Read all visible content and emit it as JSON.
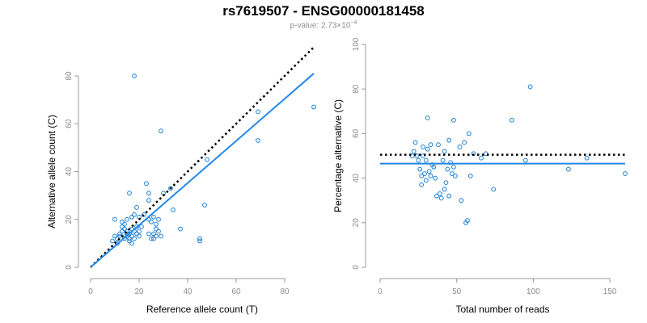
{
  "title": "rs7619507 - ENSG00000181458",
  "subtitle": {
    "prefix": "p-value: 2.73×10",
    "exponent": "−4"
  },
  "colors": {
    "point": "#1a7fd4",
    "fit": "#2388e8",
    "reference": "#000000",
    "axis": "#999999",
    "tick_text": "#8c8c8c"
  },
  "chart_data": [
    {
      "type": "scatter",
      "xlabel": "Reference allele count (T)",
      "ylabel": "Alternative allele count (C)",
      "xlim": [
        0,
        92
      ],
      "ylim": [
        0,
        80
      ],
      "xticks": [
        0,
        20,
        40,
        60,
        80
      ],
      "yticks": [
        0,
        20,
        40,
        60,
        80
      ],
      "points": [
        [
          9,
          11
        ],
        [
          10,
          13
        ],
        [
          10,
          20
        ],
        [
          11,
          10
        ],
        [
          11,
          12
        ],
        [
          12,
          14
        ],
        [
          12,
          13
        ],
        [
          13,
          15
        ],
        [
          13,
          17
        ],
        [
          13,
          19
        ],
        [
          14,
          12
        ],
        [
          14,
          16
        ],
        [
          14,
          18
        ],
        [
          15,
          13
        ],
        [
          15,
          14
        ],
        [
          15,
          15
        ],
        [
          15,
          20
        ],
        [
          16,
          12
        ],
        [
          16,
          14
        ],
        [
          16,
          31
        ],
        [
          16,
          11
        ],
        [
          17,
          13
        ],
        [
          17,
          16
        ],
        [
          17,
          21
        ],
        [
          17,
          10
        ],
        [
          18,
          22
        ],
        [
          18,
          15
        ],
        [
          18,
          12
        ],
        [
          18,
          80
        ],
        [
          19,
          17
        ],
        [
          19,
          25
        ],
        [
          19,
          14
        ],
        [
          20,
          15
        ],
        [
          20,
          13
        ],
        [
          20,
          21
        ],
        [
          21,
          17
        ],
        [
          22,
          22
        ],
        [
          23,
          35
        ],
        [
          24,
          20
        ],
        [
          24,
          28
        ],
        [
          24,
          31
        ],
        [
          24,
          14
        ],
        [
          25,
          12
        ],
        [
          25,
          19
        ],
        [
          26,
          21
        ],
        [
          26,
          12
        ],
        [
          26,
          14
        ],
        [
          27,
          16
        ],
        [
          27,
          18
        ],
        [
          27,
          13
        ],
        [
          28,
          20
        ],
        [
          28,
          15
        ],
        [
          29,
          13
        ],
        [
          29,
          57
        ],
        [
          30,
          31
        ],
        [
          33,
          33
        ],
        [
          34,
          24
        ],
        [
          37,
          16
        ],
        [
          45,
          12
        ],
        [
          45,
          11
        ],
        [
          47,
          26
        ],
        [
          48,
          45
        ],
        [
          69,
          65
        ],
        [
          69,
          53
        ],
        [
          92,
          67
        ]
      ],
      "reference_line": {
        "slope": 1,
        "intercept": 0,
        "x": [
          0,
          92
        ]
      },
      "fit_line": {
        "x": [
          0,
          92
        ],
        "y": [
          0,
          81
        ]
      },
      "grid": false,
      "legend": "none"
    },
    {
      "type": "scatter",
      "xlabel": "Total number of reads",
      "ylabel": "Percentage alternative (C)",
      "xlim": [
        0,
        160
      ],
      "ylim": [
        0,
        100
      ],
      "xticks": [
        0,
        50,
        100,
        150
      ],
      "yticks": [
        0,
        20,
        40,
        60,
        80,
        100
      ],
      "points": [
        [
          21,
          50
        ],
        [
          22,
          52
        ],
        [
          23,
          56
        ],
        [
          24,
          50
        ],
        [
          25,
          48
        ],
        [
          26,
          44
        ],
        [
          27,
          37
        ],
        [
          27,
          41
        ],
        [
          28,
          50
        ],
        [
          28,
          54
        ],
        [
          29,
          42
        ],
        [
          30,
          39
        ],
        [
          30,
          48
        ],
        [
          31,
          67
        ],
        [
          31,
          53
        ],
        [
          32,
          43
        ],
        [
          33,
          55
        ],
        [
          33,
          41
        ],
        [
          34,
          46
        ],
        [
          35,
          45
        ],
        [
          36,
          40
        ],
        [
          37,
          32
        ],
        [
          38,
          55
        ],
        [
          39,
          33
        ],
        [
          40,
          31
        ],
        [
          41,
          48
        ],
        [
          42,
          35
        ],
        [
          42,
          52
        ],
        [
          43,
          38
        ],
        [
          44,
          44
        ],
        [
          45,
          57
        ],
        [
          45,
          32
        ],
        [
          46,
          47
        ],
        [
          47,
          42
        ],
        [
          48,
          66
        ],
        [
          48,
          45
        ],
        [
          49,
          41
        ],
        [
          52,
          54
        ],
        [
          53,
          30
        ],
        [
          55,
          56
        ],
        [
          56,
          20
        ],
        [
          57,
          21
        ],
        [
          58,
          60
        ],
        [
          59,
          41
        ],
        [
          61,
          51
        ],
        [
          66,
          49
        ],
        [
          69,
          51
        ],
        [
          74,
          35
        ],
        [
          86,
          66
        ],
        [
          95,
          48
        ],
        [
          98,
          81
        ],
        [
          123,
          44
        ],
        [
          135,
          49
        ],
        [
          160,
          42
        ]
      ],
      "reference_line": {
        "y": 50.5,
        "x": [
          0,
          160
        ]
      },
      "fit_line": {
        "y": 46.5,
        "x": [
          0,
          160
        ]
      },
      "grid": false,
      "legend": "none"
    }
  ]
}
